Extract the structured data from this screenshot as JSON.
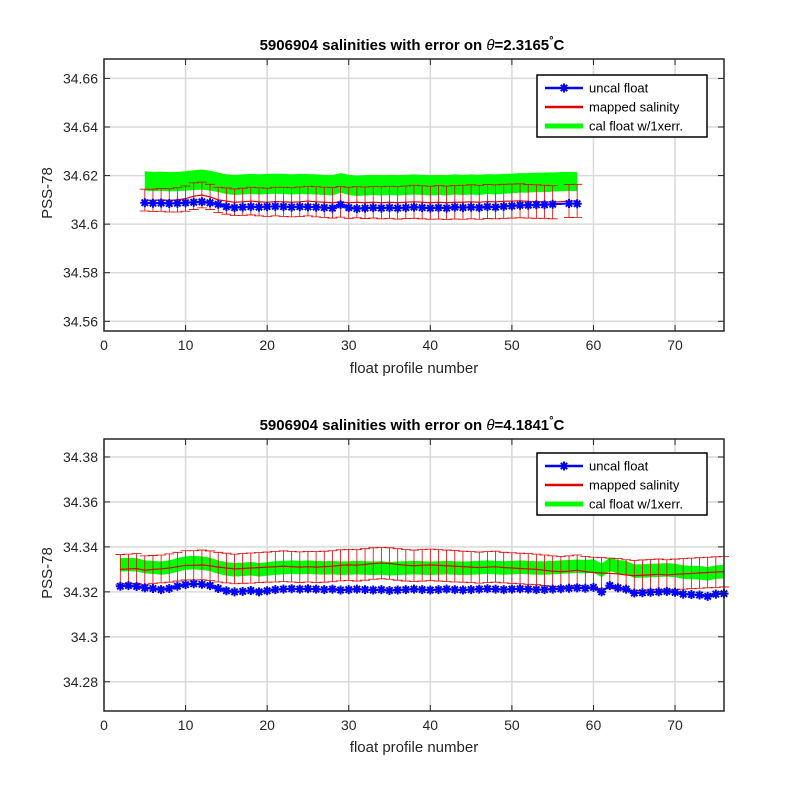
{
  "page": {
    "background": "#ffffff"
  },
  "colors": {
    "uncal": "#0000ff",
    "mapped": "#e00000",
    "cal_band": "#00ff00",
    "grid": "#d9d9d9",
    "axis": "#262626"
  },
  "chart_data": [
    {
      "type": "line",
      "title_main": "5906904 salinities with error on ",
      "title_symbol": "θ",
      "title_value": "=2.3165",
      "title_degree": "°",
      "title_unit": "C",
      "xlabel": "float profile number",
      "ylabel": "PSS-78",
      "xlim": [
        0,
        76
      ],
      "ylim": [
        34.556,
        34.668
      ],
      "xticks": [
        0,
        10,
        20,
        30,
        40,
        50,
        60,
        70
      ],
      "xtick_labels": [
        "0",
        "10",
        "20",
        "30",
        "40",
        "50",
        "60",
        "70"
      ],
      "yticks": [
        34.56,
        34.58,
        34.6,
        34.62,
        34.64,
        34.66
      ],
      "ytick_labels": [
        "34.56",
        "34.58",
        "34.6",
        "34.62",
        "34.64",
        "34.66"
      ],
      "grid": true,
      "legend": {
        "placement": "top-right",
        "entries": [
          "uncal float",
          "mapped salinity",
          "cal float w/1xerr."
        ]
      },
      "x": [
        5,
        6,
        7,
        8,
        9,
        10,
        11,
        12,
        13,
        14,
        15,
        16,
        17,
        18,
        19,
        20,
        21,
        22,
        23,
        24,
        25,
        26,
        27,
        28,
        29,
        30,
        31,
        32,
        33,
        34,
        35,
        36,
        37,
        38,
        39,
        40,
        41,
        42,
        43,
        44,
        45,
        46,
        47,
        48,
        49,
        50,
        51,
        52,
        53,
        54,
        55,
        57,
        58
      ],
      "uncal": [
        34.6088,
        34.6086,
        34.6087,
        34.6085,
        34.6086,
        34.6088,
        34.609,
        34.6092,
        34.6088,
        34.6082,
        34.6072,
        34.6068,
        34.607,
        34.6072,
        34.607,
        34.6072,
        34.6073,
        34.6072,
        34.607,
        34.6072,
        34.6071,
        34.607,
        34.6068,
        34.6066,
        34.608,
        34.6068,
        34.6064,
        34.6066,
        34.6068,
        34.6066,
        34.6068,
        34.6066,
        34.6068,
        34.607,
        34.6068,
        34.6066,
        34.6068,
        34.6066,
        34.607,
        34.6068,
        34.607,
        34.6068,
        34.6072,
        34.607,
        34.6073,
        34.6075,
        34.6078,
        34.6078,
        34.608,
        34.608,
        34.6082,
        34.6085,
        34.6084
      ],
      "mapped": [
        34.6099,
        34.6098,
        34.61,
        34.6098,
        34.61,
        34.6105,
        34.6115,
        34.612,
        34.6112,
        34.61,
        34.6095,
        34.609,
        34.6092,
        34.6095,
        34.6092,
        34.609,
        34.6093,
        34.6092,
        34.609,
        34.6092,
        34.6095,
        34.6092,
        34.609,
        34.6088,
        34.6092,
        34.6088,
        34.609,
        34.6088,
        34.609,
        34.6088,
        34.609,
        34.6088,
        34.609,
        34.6092,
        34.609,
        34.6088,
        34.609,
        34.6088,
        34.609,
        34.609,
        34.6092,
        34.609,
        34.6093,
        34.6092,
        34.6094,
        34.6095,
        34.6096,
        34.6094,
        34.6093,
        34.6092,
        34.609,
        34.6095,
        34.6096
      ],
      "mapped_err": [
        0.0045,
        0.0046,
        0.0047,
        0.0048,
        0.005,
        0.0052,
        0.0055,
        0.0053,
        0.0052,
        0.0052,
        0.0054,
        0.0055,
        0.0056,
        0.0057,
        0.0058,
        0.0058,
        0.0059,
        0.006,
        0.006,
        0.0061,
        0.0061,
        0.0062,
        0.0062,
        0.0063,
        0.0063,
        0.0064,
        0.0064,
        0.0065,
        0.0065,
        0.0066,
        0.0066,
        0.0067,
        0.0067,
        0.0068,
        0.0068,
        0.0068,
        0.0069,
        0.0069,
        0.0069,
        0.007,
        0.007,
        0.007,
        0.007,
        0.007,
        0.007,
        0.007,
        0.007,
        0.0069,
        0.0069,
        0.0068,
        0.0068,
        0.0068,
        0.0068
      ],
      "cal_upper": [
        34.6218,
        34.6215,
        34.6216,
        34.6214,
        34.6215,
        34.6218,
        34.6222,
        34.6225,
        34.622,
        34.6212,
        34.6205,
        34.6203,
        34.6205,
        34.6207,
        34.6205,
        34.6207,
        34.6208,
        34.6207,
        34.6205,
        34.6207,
        34.6206,
        34.6205,
        34.6203,
        34.6202,
        34.621,
        34.6203,
        34.62,
        34.6202,
        34.6203,
        34.6202,
        34.6203,
        34.6202,
        34.6203,
        34.6205,
        34.6203,
        34.6202,
        34.6203,
        34.6202,
        34.6205,
        34.6203,
        34.6205,
        34.6203,
        34.6206,
        34.6205,
        34.6207,
        34.6208,
        34.621,
        34.621,
        34.6212,
        34.6212,
        34.6213,
        34.6215,
        34.6214
      ],
      "cal_lower": [
        34.6138,
        34.6136,
        34.6137,
        34.6135,
        34.6136,
        34.6138,
        34.614,
        34.6142,
        34.6138,
        34.6132,
        34.6124,
        34.612,
        34.6122,
        34.6124,
        34.6122,
        34.6124,
        34.6125,
        34.6124,
        34.6122,
        34.6124,
        34.6123,
        34.6122,
        34.612,
        34.6118,
        34.613,
        34.612,
        34.6116,
        34.6118,
        34.612,
        34.6118,
        34.612,
        34.6118,
        34.612,
        34.6122,
        34.612,
        34.6118,
        34.612,
        34.6118,
        34.6122,
        34.612,
        34.6122,
        34.612,
        34.6124,
        34.6122,
        34.6125,
        34.6127,
        34.613,
        34.613,
        34.6132,
        34.6132,
        34.6134,
        34.6137,
        34.6136
      ]
    },
    {
      "type": "line",
      "title_main": "5906904 salinities with error on ",
      "title_symbol": "θ",
      "title_value": "=4.1841",
      "title_degree": "°",
      "title_unit": "C",
      "xlabel": "float profile number",
      "ylabel": "PSS-78",
      "xlim": [
        0,
        76
      ],
      "ylim": [
        34.267,
        34.388
      ],
      "xticks": [
        0,
        10,
        20,
        30,
        40,
        50,
        60,
        70
      ],
      "xtick_labels": [
        "0",
        "10",
        "20",
        "30",
        "40",
        "50",
        "60",
        "70"
      ],
      "yticks": [
        34.28,
        34.3,
        34.32,
        34.34,
        34.36,
        34.38
      ],
      "ytick_labels": [
        "34.28",
        "34.3",
        "34.32",
        "34.34",
        "34.36",
        "34.38"
      ],
      "grid": true,
      "legend": {
        "placement": "top-right",
        "entries": [
          "uncal float",
          "mapped salinity",
          "cal float w/1xerr."
        ]
      },
      "x": [
        2,
        3,
        4,
        5,
        6,
        7,
        8,
        9,
        10,
        11,
        12,
        13,
        14,
        15,
        16,
        17,
        18,
        19,
        20,
        21,
        22,
        23,
        24,
        25,
        26,
        27,
        28,
        29,
        30,
        31,
        32,
        33,
        34,
        35,
        36,
        37,
        38,
        39,
        40,
        41,
        42,
        43,
        44,
        45,
        46,
        47,
        48,
        49,
        50,
        51,
        52,
        53,
        54,
        55,
        56,
        57,
        58,
        59,
        60,
        61,
        62,
        63,
        64,
        65,
        66,
        67,
        68,
        69,
        70,
        71,
        72,
        73,
        74,
        75,
        76
      ],
      "uncal": [
        34.3225,
        34.3228,
        34.3224,
        34.3218,
        34.3215,
        34.321,
        34.3215,
        34.3225,
        34.3232,
        34.3236,
        34.3234,
        34.3228,
        34.3215,
        34.3205,
        34.32,
        34.3202,
        34.3206,
        34.32,
        34.3205,
        34.321,
        34.3212,
        34.3214,
        34.3212,
        34.3214,
        34.3212,
        34.321,
        34.3212,
        34.3208,
        34.321,
        34.3212,
        34.321,
        34.3208,
        34.321,
        34.3206,
        34.3208,
        34.321,
        34.3212,
        34.321,
        34.3208,
        34.321,
        34.3212,
        34.321,
        34.3208,
        34.321,
        34.3212,
        34.3214,
        34.3212,
        34.321,
        34.3212,
        34.3214,
        34.3212,
        34.321,
        34.321,
        34.3212,
        34.3214,
        34.3216,
        34.3218,
        34.3216,
        34.322,
        34.32,
        34.3228,
        34.3218,
        34.3212,
        34.3195,
        34.3196,
        34.3198,
        34.32,
        34.3202,
        34.3198,
        34.319,
        34.3188,
        34.3186,
        34.318,
        34.319,
        34.3192
      ],
      "mapped": [
        34.33,
        34.3302,
        34.3304,
        34.3296,
        34.33,
        34.3302,
        34.3306,
        34.3312,
        34.3318,
        34.3318,
        34.332,
        34.3316,
        34.331,
        34.3306,
        34.3302,
        34.3304,
        34.3306,
        34.3308,
        34.331,
        34.3312,
        34.3314,
        34.3312,
        34.331,
        34.3312,
        34.331,
        34.3312,
        34.3314,
        34.3318,
        34.332,
        34.3318,
        34.3322,
        34.3326,
        34.3328,
        34.3326,
        34.3322,
        34.3318,
        34.3316,
        34.3318,
        34.332,
        34.3318,
        34.3316,
        34.3314,
        34.3312,
        34.331,
        34.3308,
        34.331,
        34.3312,
        34.3308,
        34.3306,
        34.3304,
        34.3302,
        34.33,
        34.3296,
        34.3292,
        34.329,
        34.3292,
        34.3296,
        34.329,
        34.3286,
        34.3284,
        34.3282,
        34.328,
        34.3275,
        34.3272,
        34.3274,
        34.3276,
        34.3278,
        34.3275,
        34.3278,
        34.328,
        34.3282,
        34.3284,
        34.3286,
        34.3288,
        34.329
      ],
      "mapped_err": [
        0.0066,
        0.0066,
        0.0066,
        0.0064,
        0.0062,
        0.0062,
        0.0063,
        0.0064,
        0.0065,
        0.0065,
        0.0066,
        0.0066,
        0.0066,
        0.0066,
        0.0066,
        0.0066,
        0.0067,
        0.0067,
        0.0067,
        0.0068,
        0.0068,
        0.0068,
        0.0068,
        0.0068,
        0.0069,
        0.0069,
        0.0069,
        0.0069,
        0.0069,
        0.007,
        0.007,
        0.007,
        0.007,
        0.007,
        0.007,
        0.007,
        0.007,
        0.007,
        0.007,
        0.007,
        0.007,
        0.007,
        0.0069,
        0.0069,
        0.0069,
        0.0069,
        0.0069,
        0.0068,
        0.0068,
        0.0068,
        0.0068,
        0.0068,
        0.0068,
        0.0068,
        0.0068,
        0.0068,
        0.0068,
        0.0068,
        0.0068,
        0.0068,
        0.0068,
        0.0068,
        0.0068,
        0.0068,
        0.0068,
        0.0068,
        0.0068,
        0.0068,
        0.0068,
        0.0068,
        0.0068,
        0.0068,
        0.0068,
        0.0068,
        0.0068
      ],
      "cal_upper": [
        34.335,
        34.3352,
        34.335,
        34.334,
        34.3338,
        34.3335,
        34.334,
        34.335,
        34.3358,
        34.336,
        34.3358,
        34.3352,
        34.334,
        34.3332,
        34.3328,
        34.333,
        34.3333,
        34.3328,
        34.3332,
        34.3336,
        34.3338,
        34.334,
        34.3338,
        34.334,
        34.3338,
        34.3336,
        34.3338,
        34.3335,
        34.3336,
        34.3338,
        34.3336,
        34.3335,
        34.3336,
        34.3333,
        34.3335,
        34.3336,
        34.3338,
        34.3336,
        34.3335,
        34.3336,
        34.3338,
        34.3336,
        34.3335,
        34.3336,
        34.3338,
        34.334,
        34.3338,
        34.3336,
        34.3338,
        34.334,
        34.3338,
        34.3336,
        34.3336,
        34.3338,
        34.334,
        34.3342,
        34.3344,
        34.3342,
        34.3345,
        34.3326,
        34.3352,
        34.3342,
        34.3338,
        34.3322,
        34.3323,
        34.3325,
        34.3326,
        34.3328,
        34.3325,
        34.3318,
        34.3316,
        34.3315,
        34.331,
        34.3318,
        34.332
      ],
      "cal_lower": [
        34.329,
        34.3292,
        34.329,
        34.3282,
        34.328,
        34.3276,
        34.328,
        34.329,
        34.3298,
        34.33,
        34.3298,
        34.3292,
        34.328,
        34.3272,
        34.3268,
        34.327,
        34.3273,
        34.3268,
        34.3272,
        34.3276,
        34.3278,
        34.328,
        34.3278,
        34.328,
        34.3278,
        34.3276,
        34.3278,
        34.3275,
        34.3276,
        34.3278,
        34.3276,
        34.3275,
        34.3276,
        34.3273,
        34.3275,
        34.3276,
        34.3278,
        34.3276,
        34.3275,
        34.3276,
        34.3278,
        34.3276,
        34.3275,
        34.3276,
        34.3278,
        34.328,
        34.3278,
        34.3276,
        34.3278,
        34.328,
        34.3278,
        34.3276,
        34.3276,
        34.3278,
        34.328,
        34.3282,
        34.3284,
        34.3282,
        34.3285,
        34.3266,
        34.3292,
        34.3282,
        34.3278,
        34.3262,
        34.3263,
        34.3265,
        34.3266,
        34.3268,
        34.3265,
        34.3258,
        34.3256,
        34.3255,
        34.325,
        34.3258,
        34.326
      ]
    }
  ]
}
